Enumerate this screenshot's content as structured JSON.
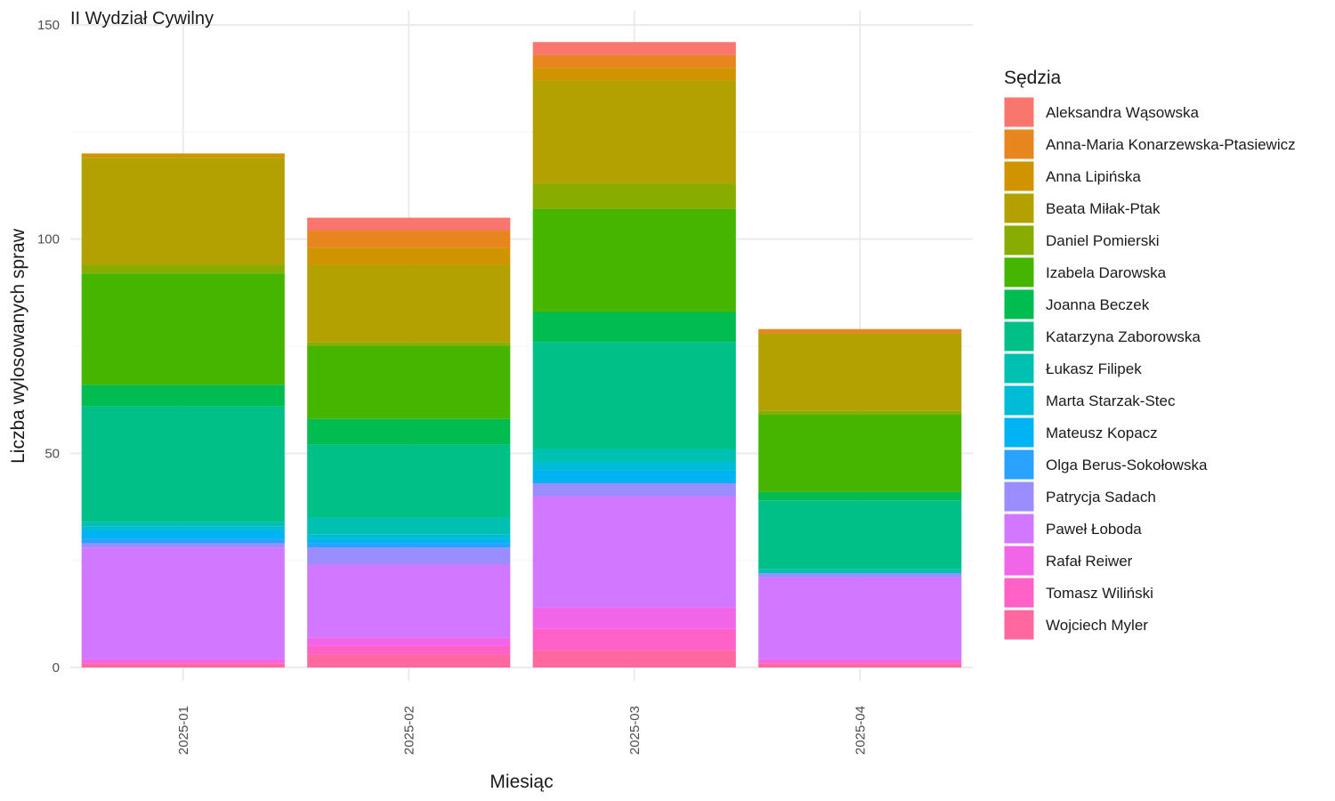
{
  "chart_data": {
    "type": "bar",
    "stacked": true,
    "title": "II Wydział Cywilny",
    "xlabel": "Miesiąc",
    "ylabel": "Liczba wylosowanych spraw",
    "ylim": [
      0,
      150
    ],
    "yticks": [
      0,
      50,
      100,
      150
    ],
    "grid": true,
    "legend_title": "Sędzia",
    "legend_position": "right",
    "categories": [
      "2025-01",
      "2025-02",
      "2025-03",
      "2025-04"
    ],
    "series": [
      {
        "name": "Aleksandra Wąsowska",
        "color": "#F8766D",
        "values": [
          0,
          3,
          3,
          0
        ]
      },
      {
        "name": "Anna-Maria Konarzewska-Ptasiewicz",
        "color": "#E7851E",
        "values": [
          0,
          4,
          3,
          1
        ]
      },
      {
        "name": "Anna Lipińska",
        "color": "#D09400",
        "values": [
          1,
          4,
          3,
          0
        ]
      },
      {
        "name": "Beata Miłak-Ptak",
        "color": "#B2A100",
        "values": [
          25,
          18,
          24,
          18
        ]
      },
      {
        "name": "Daniel Pomierski",
        "color": "#89AC00",
        "values": [
          2,
          1,
          6,
          1
        ]
      },
      {
        "name": "Izabela Darowska",
        "color": "#45B500",
        "values": [
          26,
          17,
          24,
          18
        ]
      },
      {
        "name": "Joanna Beczek",
        "color": "#00BC51",
        "values": [
          5,
          6,
          7,
          2
        ]
      },
      {
        "name": "Katarzyna Zaborowska",
        "color": "#00C087",
        "values": [
          27,
          17,
          25,
          16
        ]
      },
      {
        "name": "Łukasz Filipek",
        "color": "#00C0B2",
        "values": [
          1,
          4,
          3,
          1
        ]
      },
      {
        "name": "Marta Starzak-Stec",
        "color": "#00BCD6",
        "values": [
          1,
          1,
          2,
          0
        ]
      },
      {
        "name": "Mateusz Kopacz",
        "color": "#00B3F2",
        "values": [
          2,
          1,
          3,
          0
        ]
      },
      {
        "name": "Olga Berus-Sokołowska",
        "color": "#29A3FF",
        "values": [
          1,
          1,
          0,
          0
        ]
      },
      {
        "name": "Patrycja Sadach",
        "color": "#9C8DFF",
        "values": [
          1,
          4,
          3,
          1
        ]
      },
      {
        "name": "Paweł Łoboda",
        "color": "#D277FF",
        "values": [
          26,
          17,
          26,
          19
        ]
      },
      {
        "name": "Rafał Reiwer",
        "color": "#F166E8",
        "values": [
          1,
          2,
          5,
          1
        ]
      },
      {
        "name": "Tomasz Wiliński",
        "color": "#FF61C7",
        "values": [
          0,
          2,
          5,
          0
        ]
      },
      {
        "name": "Wojciech Myler",
        "color": "#FF689E",
        "values": [
          1,
          3,
          4,
          1
        ]
      }
    ]
  }
}
